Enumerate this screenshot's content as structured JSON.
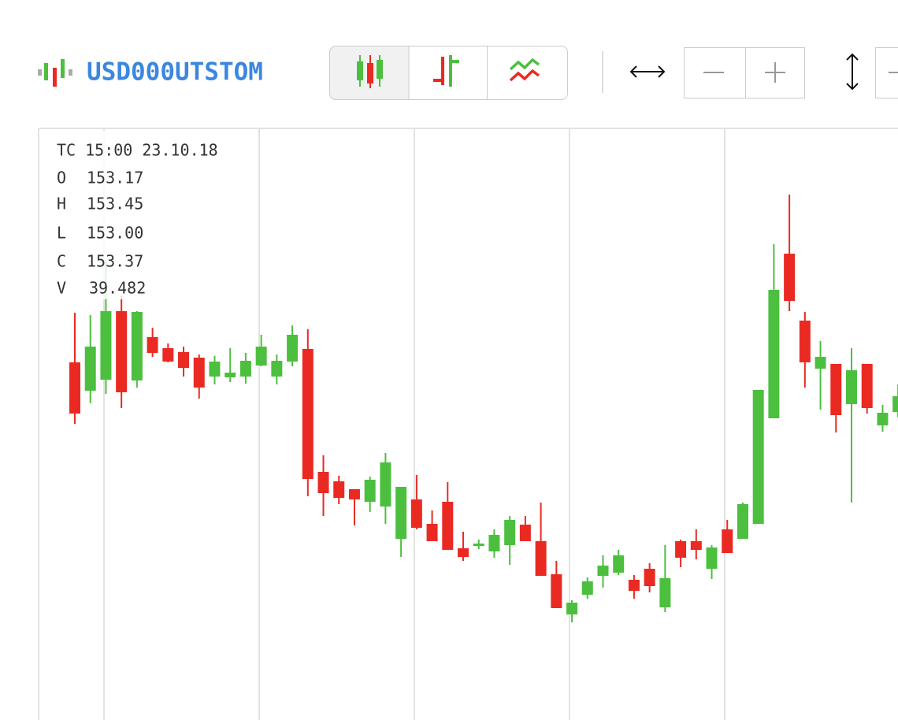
{
  "header": {
    "ticker": "USD000UTSTOM"
  },
  "info": {
    "time": "TC 15:00 23.10.18",
    "rows": [
      {
        "label": "O",
        "value": "153.17"
      },
      {
        "label": "H",
        "value": "153.45"
      },
      {
        "label": "L",
        "value": "153.00"
      },
      {
        "label": "C",
        "value": "153.37"
      },
      {
        "label": "V",
        "value": "39.482"
      }
    ]
  },
  "chart_data": {
    "type": "candlestick",
    "up_color": "#4cbf3f",
    "down_color": "#ea2a22",
    "ylim": [
      0,
      75
    ],
    "open": [
      45.4,
      41.8,
      43.2,
      51.9,
      43.1,
      48.6,
      47.2,
      46.7,
      46.0,
      43.6,
      43.5,
      43.6,
      45.0,
      43.6,
      45.5,
      47.1,
      31.5,
      30.3,
      29.3,
      27.7,
      27.1,
      23.0,
      28.0,
      24.9,
      27.7,
      21.8,
      22.1,
      21.4,
      22.2,
      24.8,
      22.7,
      18.5,
      13.4,
      15.9,
      18.3,
      18.7,
      17.8,
      19.2,
      14.3,
      22.7,
      22.7,
      19.2,
      24.2,
      23.0,
      24.9,
      38.3,
      59.2,
      50.7,
      44.6,
      45.2,
      40.1,
      45.2,
      37.4,
      39.1
    ],
    "high": [
      51.7,
      51.4,
      58.4,
      53.9,
      51.9,
      49.8,
      47.8,
      47.4,
      46.4,
      46.2,
      47.2,
      46.6,
      48.9,
      46.4,
      50.1,
      49.6,
      33.6,
      31.0,
      29.3,
      30.9,
      33.9,
      29.6,
      31.1,
      26.6,
      30.2,
      23.9,
      22.9,
      24.2,
      25.9,
      25.9,
      27.6,
      20.2,
      15.2,
      18.1,
      20.9,
      21.6,
      18.4,
      19.9,
      22.2,
      22.9,
      24.2,
      22.2,
      25.4,
      27.6,
      41.9,
      60.4,
      66.7,
      51.8,
      48.1,
      45.2,
      47.2,
      45.2,
      40.0,
      42.6
    ],
    "low": [
      37.6,
      40.2,
      41.4,
      39.6,
      42.2,
      46.1,
      45.4,
      43.6,
      40.8,
      42.6,
      42.9,
      42.7,
      44.9,
      42.6,
      44.9,
      28.4,
      25.9,
      27.4,
      24.7,
      26.4,
      24.9,
      20.7,
      24.2,
      22.7,
      21.6,
      20.2,
      21.7,
      20.6,
      19.7,
      22.7,
      18.3,
      14.2,
      12.4,
      15.4,
      16.8,
      18.4,
      15.4,
      16.2,
      13.7,
      19.4,
      20.4,
      17.9,
      21.2,
      23.0,
      24.9,
      38.3,
      51.9,
      42.2,
      39.4,
      36.5,
      27.6,
      38.9,
      36.6,
      38.4
    ],
    "close": [
      38.9,
      47.4,
      51.9,
      41.6,
      51.8,
      46.6,
      45.5,
      44.7,
      42.2,
      45.5,
      44.1,
      45.6,
      47.4,
      45.6,
      48.9,
      30.6,
      28.8,
      28.2,
      28.0,
      30.5,
      32.7,
      29.6,
      24.4,
      22.7,
      21.6,
      20.7,
      22.4,
      23.5,
      25.4,
      22.7,
      18.3,
      14.2,
      14.9,
      17.6,
      19.6,
      20.9,
      16.4,
      17.0,
      18.0,
      20.6,
      21.6,
      21.9,
      21.2,
      27.4,
      41.9,
      54.6,
      53.2,
      45.4,
      46.1,
      38.7,
      44.4,
      39.6,
      39.0,
      41.1
    ]
  }
}
